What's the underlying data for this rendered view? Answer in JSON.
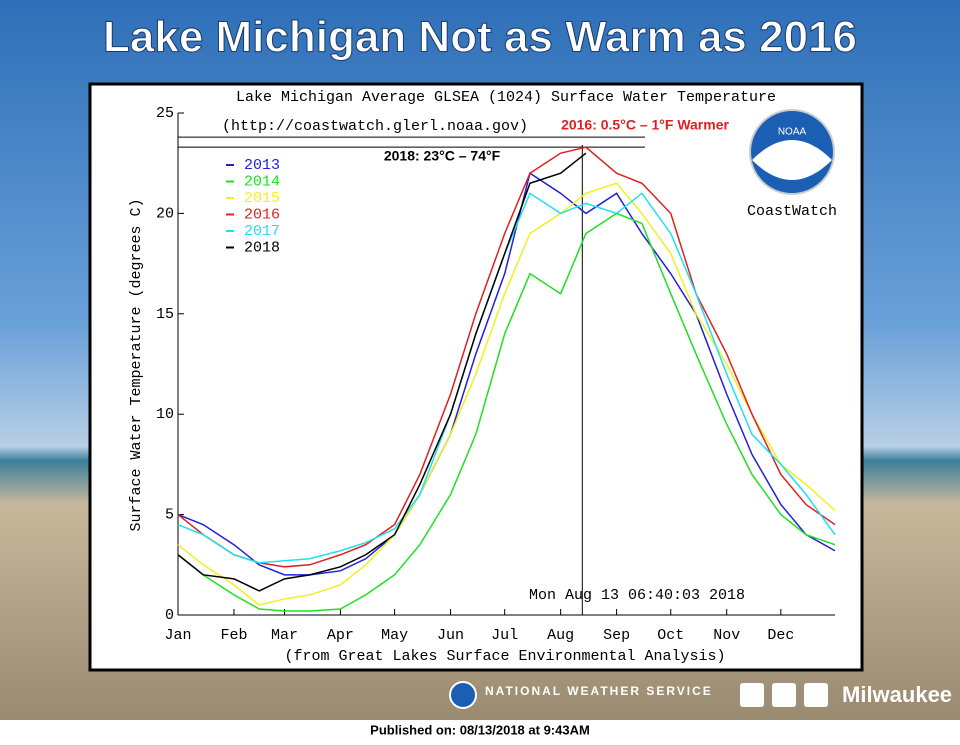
{
  "banner_title": "Lake Michigan Not as Warm as 2016",
  "footer": {
    "agency": "NATIONAL WEATHER SERVICE",
    "office": "Milwaukee",
    "published": "Published on: 08/13/2018 at 9:43AM"
  },
  "logo": {
    "badge": "NOAA",
    "name": "CoastWatch"
  },
  "chart_data": {
    "type": "line",
    "title": "Lake Michigan Average GLSEA (1024) Surface Water Temperature",
    "subtitle": "(http://coastwatch.glerl.noaa.gov)",
    "y_label": "Surface Water Temperature (degrees C)",
    "x_label": "(from Great Lakes Surface Environmental Analysis)",
    "timestamp": "Mon Aug 13 06:40:03 2018",
    "annotations": [
      "2016: 0.5°C – 1°F Warmer",
      "2018: 23°C – 74°F"
    ],
    "hlines": [
      23.8,
      23.3
    ],
    "vline": 225,
    "x": [
      1,
      15,
      32,
      46,
      60,
      74,
      91,
      105,
      121,
      135,
      152,
      166,
      182,
      196,
      213,
      227,
      244,
      258,
      274,
      288,
      305,
      319,
      335,
      349,
      365
    ],
    "xlim": [
      1,
      365
    ],
    "xticks": [
      {
        "value": 1,
        "label": "Jan"
      },
      {
        "value": 32,
        "label": "Feb"
      },
      {
        "value": 60,
        "label": "Mar"
      },
      {
        "value": 91,
        "label": "Apr"
      },
      {
        "value": 121,
        "label": "May"
      },
      {
        "value": 152,
        "label": "Jun"
      },
      {
        "value": 182,
        "label": "Jul"
      },
      {
        "value": 213,
        "label": "Aug"
      },
      {
        "value": 244,
        "label": "Sep"
      },
      {
        "value": 274,
        "label": "Oct"
      },
      {
        "value": 305,
        "label": "Nov"
      },
      {
        "value": 335,
        "label": "Dec"
      }
    ],
    "ylim": [
      0,
      25
    ],
    "yticks": [
      0,
      5,
      10,
      15,
      20,
      25
    ],
    "series": [
      {
        "name": "2013",
        "color": "#2020e0",
        "values": [
          5,
          4.5,
          3.5,
          2.5,
          2,
          2,
          2.2,
          2.8,
          4,
          6,
          9,
          13,
          17,
          22,
          21,
          20,
          21,
          19,
          17,
          15,
          11,
          8,
          5.5,
          4,
          3.2
        ]
      },
      {
        "name": "2014",
        "color": "#20e020",
        "values": [
          3,
          2,
          1,
          0.3,
          0.2,
          0.2,
          0.3,
          1,
          2,
          3.5,
          6,
          9,
          14,
          17,
          16,
          19,
          20,
          19.5,
          16,
          13,
          9.5,
          7,
          5,
          4,
          3.5
        ]
      },
      {
        "name": "2015",
        "color": "#f0f020",
        "values": [
          3.5,
          2.5,
          1.5,
          0.5,
          0.8,
          1,
          1.5,
          2.5,
          4,
          6,
          9,
          12,
          16,
          19,
          20,
          21,
          21.5,
          20,
          18,
          15,
          12.5,
          10,
          7.5,
          6.5,
          5.2
        ]
      },
      {
        "name": "2016",
        "color": "#e02020",
        "values": [
          5,
          4,
          3,
          2.6,
          2.4,
          2.5,
          3,
          3.5,
          4.5,
          7,
          11,
          15,
          19,
          22,
          23,
          23.3,
          22,
          21.5,
          20,
          16,
          13,
          10,
          7,
          5.5,
          4.5
        ]
      },
      {
        "name": "2017",
        "color": "#20e0f0",
        "values": [
          4.5,
          4,
          3,
          2.6,
          2.7,
          2.8,
          3.2,
          3.6,
          4.3,
          6,
          10,
          14,
          18,
          21,
          20,
          20.5,
          20,
          21,
          19,
          16,
          12,
          9,
          7.5,
          6,
          4
        ]
      },
      {
        "name": "2018",
        "color": "#000000",
        "values": [
          3,
          2,
          1.8,
          1.2,
          1.8,
          2,
          2.4,
          3,
          4,
          6.5,
          10,
          14,
          18,
          21.5,
          22,
          23,
          null,
          null,
          null,
          null,
          null,
          null,
          null,
          null,
          null
        ]
      }
    ]
  }
}
